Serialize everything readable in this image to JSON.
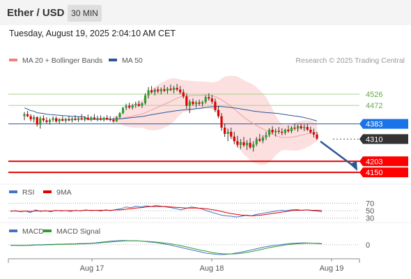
{
  "header": {
    "pair": "Ether / USD",
    "timeframe": "30 MIN",
    "datetime": "Tuesday, August 19, 2025 2:04:10 AM CET"
  },
  "chart_data": {
    "type": "candlestick",
    "legend": [
      {
        "label": "MA 20 + Bollinger Bands",
        "color": "#f08080"
      },
      {
        "label": "MA 50",
        "color": "#2b5797"
      }
    ],
    "credit": "Research © 2025 Trading Central",
    "x_ticks": [
      "Aug 17",
      "Aug 18",
      "Aug 19"
    ],
    "y_range": [
      4100,
      4650
    ],
    "levels": [
      {
        "value": 4526,
        "label": "4526",
        "kind": "resistance"
      },
      {
        "value": 4472,
        "label": "4472",
        "kind": "resistance"
      },
      {
        "value": 4383,
        "label": "4383",
        "kind": "pivot"
      },
      {
        "value": 4310,
        "label": "4310",
        "kind": "last"
      },
      {
        "value": 4203,
        "label": "4203",
        "kind": "support"
      },
      {
        "value": 4150,
        "label": "4150",
        "kind": "support"
      }
    ],
    "candles": [
      [
        4420,
        4440,
        4400,
        4430
      ],
      [
        4430,
        4445,
        4415,
        4420
      ],
      [
        4420,
        4430,
        4395,
        4405
      ],
      [
        4405,
        4425,
        4390,
        4415
      ],
      [
        4415,
        4420,
        4370,
        4380
      ],
      [
        4380,
        4420,
        4360,
        4410
      ],
      [
        4410,
        4425,
        4390,
        4400
      ],
      [
        4400,
        4415,
        4385,
        4392
      ],
      [
        4392,
        4410,
        4380,
        4402
      ],
      [
        4402,
        4420,
        4392,
        4410
      ],
      [
        4410,
        4418,
        4388,
        4395
      ],
      [
        4395,
        4410,
        4385,
        4405
      ],
      [
        4405,
        4420,
        4395,
        4398
      ],
      [
        4398,
        4412,
        4388,
        4406
      ],
      [
        4406,
        4420,
        4395,
        4400
      ],
      [
        4400,
        4415,
        4390,
        4408
      ],
      [
        4408,
        4425,
        4398,
        4402
      ],
      [
        4402,
        4418,
        4392,
        4410
      ],
      [
        4410,
        4430,
        4400,
        4405
      ],
      [
        4405,
        4420,
        4395,
        4412
      ],
      [
        4412,
        4428,
        4400,
        4404
      ],
      [
        4404,
        4420,
        4395,
        4414
      ],
      [
        4414,
        4430,
        4402,
        4408
      ],
      [
        4408,
        4422,
        4396,
        4410
      ],
      [
        4410,
        4424,
        4398,
        4404
      ],
      [
        4404,
        4418,
        4394,
        4412
      ],
      [
        4412,
        4425,
        4400,
        4406
      ],
      [
        4406,
        4420,
        4394,
        4402
      ],
      [
        4402,
        4412,
        4388,
        4396
      ],
      [
        4396,
        4420,
        4392,
        4415
      ],
      [
        4415,
        4440,
        4410,
        4435
      ],
      [
        4435,
        4465,
        4430,
        4460
      ],
      [
        4460,
        4480,
        4450,
        4470
      ],
      [
        4470,
        4485,
        4455,
        4462
      ],
      [
        4462,
        4480,
        4452,
        4472
      ],
      [
        4472,
        4490,
        4460,
        4478
      ],
      [
        4478,
        4495,
        4465,
        4470
      ],
      [
        4470,
        4488,
        4460,
        4482
      ],
      [
        4482,
        4530,
        4475,
        4520
      ],
      [
        4520,
        4560,
        4505,
        4545
      ],
      [
        4545,
        4565,
        4528,
        4535
      ],
      [
        4535,
        4555,
        4520,
        4548
      ],
      [
        4548,
        4562,
        4530,
        4540
      ],
      [
        4540,
        4558,
        4525,
        4550
      ],
      [
        4550,
        4570,
        4535,
        4542
      ],
      [
        4542,
        4560,
        4528,
        4552
      ],
      [
        4552,
        4572,
        4540,
        4546
      ],
      [
        4546,
        4565,
        4530,
        4556
      ],
      [
        4556,
        4575,
        4540,
        4548
      ],
      [
        4548,
        4565,
        4525,
        4535
      ],
      [
        4535,
        4550,
        4505,
        4515
      ],
      [
        4515,
        4530,
        4455,
        4470
      ],
      [
        4470,
        4500,
        4435,
        4490
      ],
      [
        4490,
        4505,
        4470,
        4478
      ],
      [
        4478,
        4495,
        4462,
        4486
      ],
      [
        4486,
        4500,
        4470,
        4480
      ],
      [
        4480,
        4495,
        4466,
        4488
      ],
      [
        4488,
        4520,
        4480,
        4512
      ],
      [
        4512,
        4530,
        4495,
        4505
      ],
      [
        4505,
        4522,
        4480,
        4490
      ],
      [
        4490,
        4505,
        4440,
        4450
      ],
      [
        4450,
        4470,
        4410,
        4420
      ],
      [
        4420,
        4435,
        4350,
        4365
      ],
      [
        4365,
        4385,
        4320,
        4335
      ],
      [
        4335,
        4360,
        4300,
        4345
      ],
      [
        4345,
        4365,
        4310,
        4322
      ],
      [
        4322,
        4345,
        4285,
        4300
      ],
      [
        4300,
        4325,
        4270,
        4282
      ],
      [
        4282,
        4310,
        4262,
        4295
      ],
      [
        4295,
        4320,
        4272,
        4280
      ],
      [
        4280,
        4305,
        4258,
        4292
      ],
      [
        4292,
        4315,
        4262,
        4270
      ],
      [
        4270,
        4300,
        4250,
        4285
      ],
      [
        4285,
        4320,
        4276,
        4310
      ],
      [
        4310,
        4335,
        4295,
        4302
      ],
      [
        4302,
        4328,
        4290,
        4318
      ],
      [
        4318,
        4345,
        4305,
        4330
      ],
      [
        4330,
        4362,
        4320,
        4355
      ],
      [
        4355,
        4372,
        4332,
        4342
      ],
      [
        4342,
        4360,
        4322,
        4350
      ],
      [
        4350,
        4368,
        4334,
        4345
      ],
      [
        4345,
        4362,
        4328,
        4340
      ],
      [
        4340,
        4360,
        4330,
        4355
      ],
      [
        4355,
        4375,
        4340,
        4348
      ],
      [
        4348,
        4372,
        4338,
        4365
      ],
      [
        4365,
        4385,
        4352,
        4360
      ],
      [
        4360,
        4380,
        4345,
        4372
      ],
      [
        4372,
        4385,
        4355,
        4362
      ],
      [
        4362,
        4380,
        4348,
        4368
      ],
      [
        4368,
        4382,
        4348,
        4355
      ],
      [
        4355,
        4370,
        4335,
        4342
      ],
      [
        4342,
        4360,
        4318,
        4332
      ],
      [
        4332,
        4345,
        4305,
        4312
      ]
    ],
    "sub_panels": [
      {
        "name": "RSI",
        "legend": [
          {
            "label": "RSI",
            "color": "#4472c4"
          },
          {
            "label": "9MA",
            "color": "#e00000"
          }
        ],
        "levels": [
          "70",
          "50",
          "30"
        ],
        "y_range": [
          20,
          80
        ],
        "series": [
          {
            "name": "RSI",
            "values": [
              48,
              50,
              47,
              49,
              45,
              52,
              48,
              50,
              47,
              51,
              49,
              50,
              48,
              51,
              49,
              52,
              50,
              51,
              49,
              52,
              50,
              53,
              55,
              60,
              58,
              62,
              60,
              63,
              61,
              64,
              62,
              60,
              58,
              55,
              52,
              56,
              60,
              58,
              55,
              50,
              46,
              42,
              38,
              36,
              35,
              33,
              35,
              38,
              36,
              40,
              42,
              45,
              47,
              49,
              51,
              50,
              52,
              53,
              51,
              52,
              50,
              49,
              47
            ]
          },
          {
            "name": "9MA",
            "values": [
              49,
              49,
              48,
              49,
              48,
              49,
              49,
              49,
              49,
              50,
              50,
              50,
              50,
              50,
              50,
              51,
              51,
              51,
              51,
              51,
              51,
              52,
              52,
              54,
              55,
              57,
              58,
              60,
              61,
              61,
              61,
              61,
              60,
              59,
              58,
              57,
              57,
              57,
              56,
              55,
              53,
              51,
              48,
              45,
              42,
              40,
              38,
              37,
              36,
              37,
              38,
              40,
              42,
              44,
              46,
              48,
              50,
              51,
              51,
              52,
              51,
              51,
              50
            ]
          }
        ]
      },
      {
        "name": "MACD",
        "legend": [
          {
            "label": "MACD",
            "color": "#4472c4"
          },
          {
            "label": "MACD Signal",
            "color": "#2e9e2e"
          }
        ],
        "levels": [
          "0"
        ],
        "y_range": [
          -40,
          30
        ],
        "series": [
          {
            "name": "MACD",
            "values": [
              -2,
              -2,
              -3,
              -2,
              -1,
              0,
              0,
              1,
              1,
              2,
              2,
              3,
              3,
              4,
              4,
              5,
              6,
              8,
              10,
              12,
              13,
              14,
              14,
              13,
              13,
              12,
              10,
              8,
              6,
              3,
              0,
              -4,
              -8,
              -12,
              -16,
              -20,
              -24,
              -28,
              -30,
              -32,
              -33,
              -32,
              -30,
              -27,
              -24,
              -20,
              -16,
              -12,
              -8,
              -5,
              -2,
              0,
              2,
              4,
              5,
              6,
              6,
              5,
              4,
              3
            ]
          },
          {
            "name": "MACD Signal",
            "values": [
              -2,
              -2,
              -2,
              -2,
              -2,
              -1,
              -1,
              0,
              0,
              1,
              1,
              2,
              2,
              3,
              3,
              4,
              5,
              6,
              8,
              9,
              11,
              12,
              13,
              13,
              13,
              12,
              11,
              10,
              8,
              6,
              4,
              1,
              -2,
              -6,
              -10,
              -14,
              -18,
              -21,
              -25,
              -28,
              -30,
              -31,
              -31,
              -30,
              -28,
              -25,
              -22,
              -18,
              -14,
              -10,
              -7,
              -4,
              -1,
              1,
              3,
              4,
              5,
              5,
              5,
              4
            ]
          }
        ]
      }
    ]
  }
}
